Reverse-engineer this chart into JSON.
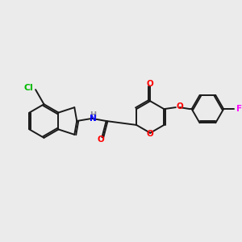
{
  "bg_color": "#ebebeb",
  "figsize": [
    3.0,
    3.0
  ],
  "dpi": 100,
  "bond_color": "#1a1a1a",
  "colors": {
    "N": "#0000ff",
    "O": "#ff0000",
    "S": "#cccc00",
    "Cl": "#00bb00",
    "F": "#ff00ff",
    "H": "#888899",
    "C": "#1a1a1a"
  },
  "font_size": 7.5
}
